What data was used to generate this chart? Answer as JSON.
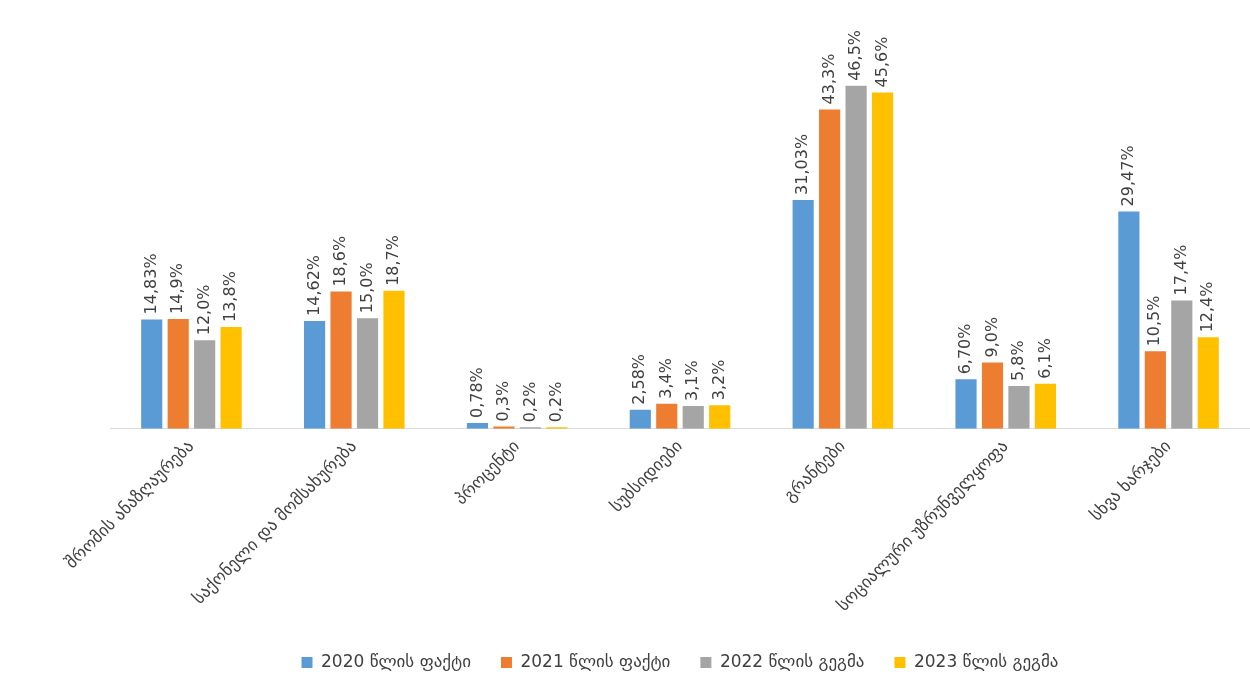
{
  "chart_data": {
    "type": "bar",
    "categories": [
      "შრომის ანაზღაურება",
      "საქონელი და მომსახურება",
      "პროცენტი",
      "სუბსიდიები",
      "გრანტები",
      "სოციალური უზრუნველყოფა",
      "სხვა ხარჯები"
    ],
    "series": [
      {
        "name": "2020 წლის ფაქტი",
        "color": "#5b9bd5",
        "values": [
          14.83,
          14.62,
          0.78,
          2.58,
          31.03,
          6.7,
          29.47
        ],
        "value_labels": [
          "14,83%",
          "14,62%",
          "0,78%",
          "2,58%",
          "31,03%",
          "6,70%",
          "29,47%"
        ]
      },
      {
        "name": "2021 წლის ფაქტი",
        "color": "#ed7d31",
        "values": [
          14.9,
          18.6,
          0.3,
          3.4,
          43.3,
          9.0,
          10.5
        ],
        "value_labels": [
          "14,9%",
          "18,6%",
          "0,3%",
          "3,4%",
          "43,3%",
          "9,0%",
          "10,5%"
        ]
      },
      {
        "name": "2022 წლის გეგმა",
        "color": "#a5a5a5",
        "values": [
          12.0,
          15.0,
          0.2,
          3.1,
          46.5,
          5.8,
          17.4
        ],
        "value_labels": [
          "12,0%",
          "15,0%",
          "0,2%",
          "3,1%",
          "46,5%",
          "5,8%",
          "17,4%"
        ]
      },
      {
        "name": "2023 წლის გეგმა",
        "color": "#ffc000",
        "values": [
          13.8,
          18.7,
          0.2,
          3.2,
          45.6,
          6.1,
          12.4
        ],
        "value_labels": [
          "13,8%",
          "18,7%",
          "0,2%",
          "3,2%",
          "45,6%",
          "6,1%",
          "12,4%"
        ]
      }
    ],
    "legend": "bottom",
    "grid": false
  }
}
